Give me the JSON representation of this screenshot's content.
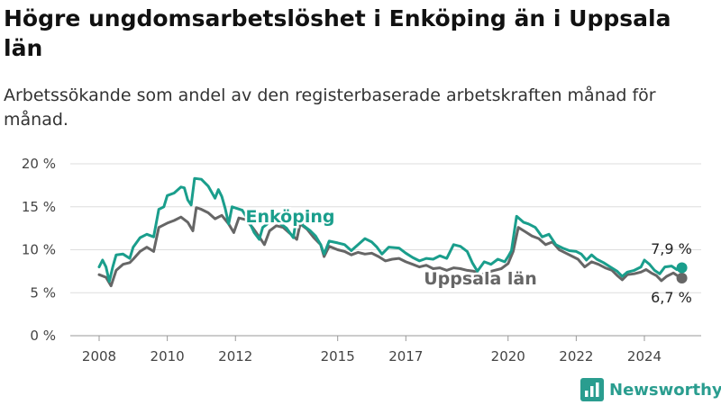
{
  "header": {
    "title": "Högre ungdomsarbetslöshet i Enköping än i Uppsala län",
    "subtitle": "Arbetssökande som andel av den registerbaserade arbetskraften månad för månad."
  },
  "brand": {
    "name": "Newsworthy",
    "icon": "bar-chart-logo-icon",
    "color": "#2a9d8f"
  },
  "chart_data": {
    "type": "line",
    "ylim": [
      0,
      20
    ],
    "y_ticks": [
      {
        "value": 0,
        "label": "0 %"
      },
      {
        "value": 5,
        "label": "5 %"
      },
      {
        "value": 10,
        "label": "10 %"
      },
      {
        "value": 15,
        "label": "15 %"
      },
      {
        "value": 20,
        "label": "20 %"
      }
    ],
    "x_ticks": [
      {
        "value": 2008,
        "label": "2008"
      },
      {
        "value": 2010,
        "label": "2010"
      },
      {
        "value": 2012,
        "label": "2012"
      },
      {
        "value": 2015,
        "label": "2015"
      },
      {
        "value": 2017,
        "label": "2017"
      },
      {
        "value": 2020,
        "label": "2020"
      },
      {
        "value": 2022,
        "label": "2022"
      },
      {
        "value": 2024,
        "label": "2024"
      }
    ],
    "grid": "horizontal",
    "legend": "inline",
    "series": [
      {
        "name": "Enköping",
        "color": "#1a9e8c",
        "end_label": "7,9 %",
        "points": [
          [
            2008.0,
            8.0
          ],
          [
            2008.1,
            8.8
          ],
          [
            2008.2,
            8.0
          ],
          [
            2008.3,
            6.3
          ],
          [
            2008.4,
            8.0
          ],
          [
            2008.5,
            9.4
          ],
          [
            2008.7,
            9.5
          ],
          [
            2008.9,
            9.0
          ],
          [
            2009.0,
            10.3
          ],
          [
            2009.2,
            11.4
          ],
          [
            2009.4,
            11.8
          ],
          [
            2009.6,
            11.5
          ],
          [
            2009.75,
            14.7
          ],
          [
            2009.9,
            15.0
          ],
          [
            2010.0,
            16.3
          ],
          [
            2010.2,
            16.6
          ],
          [
            2010.4,
            17.3
          ],
          [
            2010.5,
            17.2
          ],
          [
            2010.6,
            15.8
          ],
          [
            2010.7,
            15.2
          ],
          [
            2010.8,
            18.3
          ],
          [
            2011.0,
            18.2
          ],
          [
            2011.2,
            17.4
          ],
          [
            2011.4,
            16.0
          ],
          [
            2011.5,
            17.0
          ],
          [
            2011.6,
            16.2
          ],
          [
            2011.7,
            14.8
          ],
          [
            2011.8,
            13.0
          ],
          [
            2011.9,
            15.0
          ],
          [
            2012.2,
            14.6
          ],
          [
            2012.4,
            13.3
          ],
          [
            2012.55,
            12.0
          ],
          [
            2012.7,
            11.2
          ],
          [
            2012.8,
            12.6
          ],
          [
            2013.0,
            13.2
          ],
          [
            2013.2,
            13.4
          ],
          [
            2013.5,
            12.5
          ],
          [
            2013.7,
            11.4
          ],
          [
            2013.8,
            14.0
          ],
          [
            2014.0,
            12.8
          ],
          [
            2014.2,
            12.2
          ],
          [
            2014.35,
            11.6
          ],
          [
            2014.5,
            10.6
          ],
          [
            2014.6,
            9.5
          ],
          [
            2014.75,
            11.0
          ],
          [
            2015.0,
            10.8
          ],
          [
            2015.2,
            10.6
          ],
          [
            2015.4,
            9.9
          ],
          [
            2015.6,
            10.6
          ],
          [
            2015.8,
            11.3
          ],
          [
            2016.0,
            10.9
          ],
          [
            2016.15,
            10.3
          ],
          [
            2016.3,
            9.5
          ],
          [
            2016.5,
            10.3
          ],
          [
            2016.8,
            10.2
          ],
          [
            2017.0,
            9.6
          ],
          [
            2017.2,
            9.1
          ],
          [
            2017.4,
            8.7
          ],
          [
            2017.6,
            9.0
          ],
          [
            2017.8,
            8.9
          ],
          [
            2018.0,
            9.3
          ],
          [
            2018.2,
            9.0
          ],
          [
            2018.4,
            10.6
          ],
          [
            2018.6,
            10.4
          ],
          [
            2018.8,
            9.8
          ],
          [
            2018.95,
            8.5
          ],
          [
            2019.1,
            7.5
          ],
          [
            2019.3,
            8.6
          ],
          [
            2019.5,
            8.3
          ],
          [
            2019.7,
            8.9
          ],
          [
            2019.9,
            8.6
          ],
          [
            2020.0,
            9.2
          ],
          [
            2020.1,
            9.9
          ],
          [
            2020.25,
            13.9
          ],
          [
            2020.45,
            13.2
          ],
          [
            2020.6,
            13.0
          ],
          [
            2020.8,
            12.6
          ],
          [
            2021.0,
            11.5
          ],
          [
            2021.2,
            11.8
          ],
          [
            2021.4,
            10.6
          ],
          [
            2021.6,
            10.2
          ],
          [
            2021.8,
            9.9
          ],
          [
            2022.0,
            9.8
          ],
          [
            2022.15,
            9.5
          ],
          [
            2022.3,
            8.8
          ],
          [
            2022.45,
            9.4
          ],
          [
            2022.6,
            8.9
          ],
          [
            2022.8,
            8.5
          ],
          [
            2023.0,
            8.0
          ],
          [
            2023.2,
            7.5
          ],
          [
            2023.35,
            6.9
          ],
          [
            2023.5,
            7.4
          ],
          [
            2023.7,
            7.6
          ],
          [
            2023.9,
            8.0
          ],
          [
            2024.0,
            8.8
          ],
          [
            2024.15,
            8.3
          ],
          [
            2024.3,
            7.6
          ],
          [
            2024.45,
            7.2
          ],
          [
            2024.6,
            8.0
          ],
          [
            2024.8,
            8.1
          ],
          [
            2024.95,
            7.7
          ],
          [
            2025.1,
            7.9
          ]
        ]
      },
      {
        "name": "Uppsala län",
        "color": "#666666",
        "end_label": "6,7 %",
        "points": [
          [
            2008.0,
            7.1
          ],
          [
            2008.2,
            6.8
          ],
          [
            2008.35,
            5.8
          ],
          [
            2008.5,
            7.6
          ],
          [
            2008.7,
            8.3
          ],
          [
            2008.9,
            8.5
          ],
          [
            2009.0,
            8.9
          ],
          [
            2009.2,
            9.8
          ],
          [
            2009.4,
            10.3
          ],
          [
            2009.6,
            9.8
          ],
          [
            2009.75,
            12.6
          ],
          [
            2010.0,
            13.1
          ],
          [
            2010.2,
            13.4
          ],
          [
            2010.4,
            13.8
          ],
          [
            2010.6,
            13.2
          ],
          [
            2010.75,
            12.2
          ],
          [
            2010.85,
            14.9
          ],
          [
            2011.0,
            14.7
          ],
          [
            2011.2,
            14.3
          ],
          [
            2011.4,
            13.6
          ],
          [
            2011.6,
            14.0
          ],
          [
            2011.8,
            13.0
          ],
          [
            2011.95,
            12.0
          ],
          [
            2012.1,
            13.7
          ],
          [
            2012.3,
            13.5
          ],
          [
            2012.5,
            12.6
          ],
          [
            2012.7,
            11.5
          ],
          [
            2012.85,
            10.6
          ],
          [
            2013.0,
            12.2
          ],
          [
            2013.2,
            12.8
          ],
          [
            2013.4,
            12.6
          ],
          [
            2013.6,
            11.9
          ],
          [
            2013.8,
            11.2
          ],
          [
            2013.9,
            13.0
          ],
          [
            2014.1,
            12.4
          ],
          [
            2014.3,
            11.4
          ],
          [
            2014.5,
            10.6
          ],
          [
            2014.6,
            9.2
          ],
          [
            2014.75,
            10.4
          ],
          [
            2015.0,
            10.0
          ],
          [
            2015.2,
            9.8
          ],
          [
            2015.4,
            9.4
          ],
          [
            2015.6,
            9.7
          ],
          [
            2015.8,
            9.5
          ],
          [
            2016.0,
            9.6
          ],
          [
            2016.2,
            9.2
          ],
          [
            2016.4,
            8.7
          ],
          [
            2016.6,
            8.9
          ],
          [
            2016.8,
            9.0
          ],
          [
            2017.0,
            8.6
          ],
          [
            2017.2,
            8.3
          ],
          [
            2017.4,
            8.0
          ],
          [
            2017.6,
            8.2
          ],
          [
            2017.8,
            7.8
          ],
          [
            2018.0,
            7.9
          ],
          [
            2018.2,
            7.6
          ],
          [
            2018.4,
            7.9
          ],
          [
            2018.6,
            7.8
          ],
          [
            2018.8,
            7.6
          ],
          [
            2019.0,
            7.5
          ],
          [
            2019.2,
            7.0
          ],
          [
            2019.4,
            7.4
          ],
          [
            2019.6,
            7.6
          ],
          [
            2019.8,
            7.8
          ],
          [
            2020.0,
            8.4
          ],
          [
            2020.15,
            9.8
          ],
          [
            2020.3,
            12.6
          ],
          [
            2020.5,
            12.1
          ],
          [
            2020.7,
            11.6
          ],
          [
            2020.9,
            11.3
          ],
          [
            2021.1,
            10.6
          ],
          [
            2021.3,
            10.9
          ],
          [
            2021.5,
            10.0
          ],
          [
            2021.7,
            9.6
          ],
          [
            2021.9,
            9.2
          ],
          [
            2022.05,
            8.9
          ],
          [
            2022.25,
            8.0
          ],
          [
            2022.45,
            8.6
          ],
          [
            2022.65,
            8.3
          ],
          [
            2022.85,
            7.9
          ],
          [
            2023.05,
            7.6
          ],
          [
            2023.2,
            7.0
          ],
          [
            2023.35,
            6.5
          ],
          [
            2023.5,
            7.1
          ],
          [
            2023.7,
            7.2
          ],
          [
            2023.9,
            7.4
          ],
          [
            2024.05,
            7.7
          ],
          [
            2024.2,
            7.3
          ],
          [
            2024.35,
            7.0
          ],
          [
            2024.5,
            6.4
          ],
          [
            2024.65,
            6.9
          ],
          [
            2024.85,
            7.3
          ],
          [
            2025.0,
            6.9
          ],
          [
            2025.1,
            6.7
          ]
        ]
      }
    ]
  }
}
